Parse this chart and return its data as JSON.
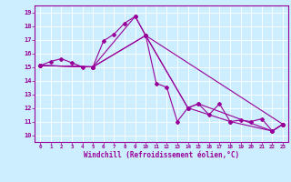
{
  "xlabel": "Windchill (Refroidissement éolien,°C)",
  "background_color": "#cceeff",
  "line_color": "#990099",
  "xlim": [
    -0.5,
    23.5
  ],
  "ylim": [
    9.5,
    19.5
  ],
  "xticks": [
    0,
    1,
    2,
    3,
    4,
    5,
    6,
    7,
    8,
    9,
    10,
    11,
    12,
    13,
    14,
    15,
    16,
    17,
    18,
    19,
    20,
    21,
    22,
    23
  ],
  "yticks": [
    10,
    11,
    12,
    13,
    14,
    15,
    16,
    17,
    18,
    19
  ],
  "series": [
    {
      "x": [
        0,
        1,
        2,
        3,
        4,
        5,
        6,
        7,
        8,
        9,
        10,
        11,
        12,
        13,
        14,
        15,
        16,
        17,
        18,
        19,
        20,
        21,
        22,
        23
      ],
      "y": [
        15.1,
        15.4,
        15.6,
        15.3,
        15.0,
        15.0,
        16.9,
        17.4,
        18.2,
        18.7,
        17.3,
        13.8,
        13.5,
        11.0,
        12.0,
        12.3,
        11.5,
        12.3,
        11.0,
        11.1,
        11.0,
        11.2,
        10.3,
        10.8
      ]
    },
    {
      "x": [
        0,
        5,
        9,
        10,
        14,
        15,
        22,
        23
      ],
      "y": [
        15.1,
        15.0,
        18.7,
        17.3,
        12.0,
        12.3,
        10.3,
        10.8
      ]
    },
    {
      "x": [
        0,
        5,
        10,
        14,
        18,
        22,
        23
      ],
      "y": [
        15.1,
        15.0,
        17.3,
        12.0,
        11.0,
        10.3,
        10.8
      ]
    },
    {
      "x": [
        0,
        5,
        10,
        23
      ],
      "y": [
        15.1,
        15.0,
        17.3,
        10.8
      ]
    }
  ]
}
